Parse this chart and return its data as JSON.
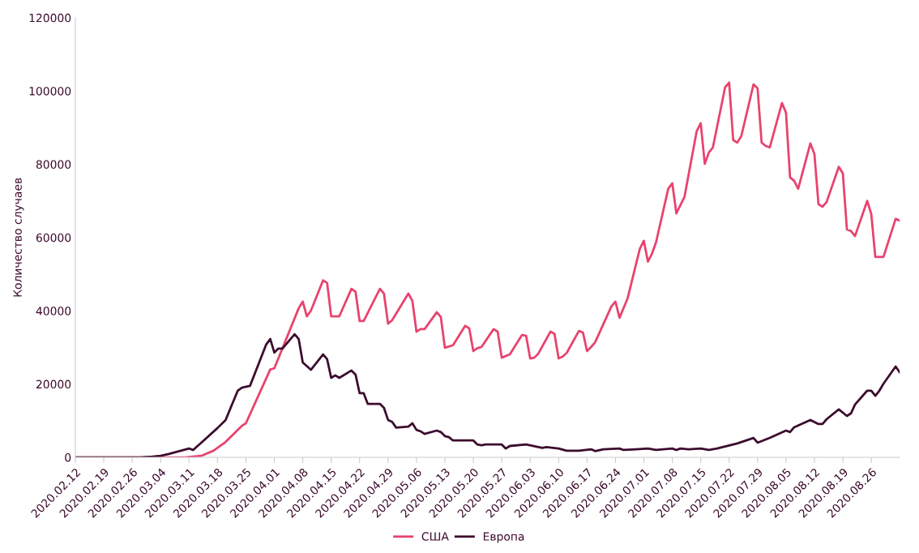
{
  "chart_data": {
    "type": "line",
    "ylabel": "Количество случаев",
    "ylim": [
      0,
      120000
    ],
    "yticks": [
      0,
      20000,
      40000,
      60000,
      80000,
      100000,
      120000
    ],
    "xlim": [
      "2020-02-12",
      "2020-09-02"
    ],
    "xticks": [
      {
        "value": "2020-02-12",
        "label": "2020.02.12"
      },
      {
        "value": "2020-02-19",
        "label": "2020.02.19"
      },
      {
        "value": "2020-02-26",
        "label": "2020.02.26"
      },
      {
        "value": "2020-03-04",
        "label": "2020.03.04"
      },
      {
        "value": "2020-03-11",
        "label": "2020.03.11"
      },
      {
        "value": "2020-03-18",
        "label": "2020.03.18"
      },
      {
        "value": "2020-03-25",
        "label": "2020.03.25"
      },
      {
        "value": "2020-04-01",
        "label": "2020.04.01"
      },
      {
        "value": "2020-04-08",
        "label": "2020.04.08"
      },
      {
        "value": "2020-04-15",
        "label": "2020.04.15"
      },
      {
        "value": "2020-04-22",
        "label": "2020.04.22"
      },
      {
        "value": "2020-04-29",
        "label": "2020.04.29"
      },
      {
        "value": "2020-05-06",
        "label": "2020.05.06"
      },
      {
        "value": "2020-05-13",
        "label": "2020.05.13"
      },
      {
        "value": "2020-05-20",
        "label": "2020.05.20"
      },
      {
        "value": "2020-05-27",
        "label": "2020.05.27"
      },
      {
        "value": "2020-06-03",
        "label": "2020.06.03"
      },
      {
        "value": "2020-06-10",
        "label": "2020.06.10"
      },
      {
        "value": "2020-06-17",
        "label": "2020.06.17"
      },
      {
        "value": "2020-06-24",
        "label": "2020.06.24"
      },
      {
        "value": "2020-07-01",
        "label": "2020.07.01"
      },
      {
        "value": "2020-07-08",
        "label": "2020.07.08"
      },
      {
        "value": "2020-07-15",
        "label": "2020.07.15"
      },
      {
        "value": "2020-07-22",
        "label": "2020.07.22"
      },
      {
        "value": "2020-07-29",
        "label": "2020.07.29"
      },
      {
        "value": "2020-08-05",
        "label": "2020.08.05"
      },
      {
        "value": "2020-08-12",
        "label": "2020.08.12"
      },
      {
        "value": "2020-08-19",
        "label": "2020.08.19"
      },
      {
        "value": "2020-08-26",
        "label": "2020.08.26"
      }
    ],
    "grid": false,
    "legend": "bottom",
    "marker": "none",
    "line_style": "solid",
    "series": [
      {
        "name": "США",
        "color": "#e8436e",
        "x": [
          "2020-02-12",
          "2020-03-10",
          "2020-03-14",
          "2020-03-17",
          "2020-03-20",
          "2020-03-24",
          "2020-03-25",
          "2020-03-31",
          "2020-04-01",
          "2020-04-07",
          "2020-04-08",
          "2020-04-09",
          "2020-04-10",
          "2020-04-13",
          "2020-04-14",
          "2020-04-15",
          "2020-04-17",
          "2020-04-20",
          "2020-04-21",
          "2020-04-22",
          "2020-04-23",
          "2020-04-27",
          "2020-04-28",
          "2020-04-29",
          "2020-04-30",
          "2020-05-04",
          "2020-05-05",
          "2020-05-06",
          "2020-05-07",
          "2020-05-08",
          "2020-05-11",
          "2020-05-12",
          "2020-05-13",
          "2020-05-15",
          "2020-05-18",
          "2020-05-19",
          "2020-05-20",
          "2020-05-21",
          "2020-05-22",
          "2020-05-25",
          "2020-05-26",
          "2020-05-27",
          "2020-05-29",
          "2020-06-01",
          "2020-06-02",
          "2020-06-03",
          "2020-06-04",
          "2020-06-05",
          "2020-06-08",
          "2020-06-09",
          "2020-06-10",
          "2020-06-11",
          "2020-06-12",
          "2020-06-15",
          "2020-06-16",
          "2020-06-17",
          "2020-06-18",
          "2020-06-19",
          "2020-06-23",
          "2020-06-24",
          "2020-06-25",
          "2020-06-27",
          "2020-06-30",
          "2020-07-01",
          "2020-07-02",
          "2020-07-03",
          "2020-07-04",
          "2020-07-07",
          "2020-07-08",
          "2020-07-09",
          "2020-07-11",
          "2020-07-14",
          "2020-07-15",
          "2020-07-16",
          "2020-07-17",
          "2020-07-18",
          "2020-07-21",
          "2020-07-22",
          "2020-07-23",
          "2020-07-24",
          "2020-07-25",
          "2020-07-28",
          "2020-07-29",
          "2020-07-30",
          "2020-07-31",
          "2020-08-01",
          "2020-08-04",
          "2020-08-05",
          "2020-08-06",
          "2020-08-07",
          "2020-08-08",
          "2020-08-11",
          "2020-08-12",
          "2020-08-13",
          "2020-08-14",
          "2020-08-15",
          "2020-08-18",
          "2020-08-19",
          "2020-08-20",
          "2020-08-21",
          "2020-08-22",
          "2020-08-25",
          "2020-08-26",
          "2020-08-27",
          "2020-08-29",
          "2020-09-01",
          "2020-09-02"
        ],
        "values": [
          0,
          0,
          400,
          1800,
          4200,
          8600,
          9300,
          24000,
          24300,
          40700,
          42500,
          38500,
          40000,
          48300,
          47600,
          38500,
          38500,
          46000,
          45200,
          37200,
          37200,
          46000,
          44700,
          36500,
          37400,
          44700,
          42700,
          34300,
          35000,
          35000,
          39600,
          38300,
          29900,
          30600,
          35900,
          35200,
          29000,
          29800,
          30100,
          35000,
          34300,
          27200,
          28100,
          33400,
          33200,
          27000,
          27200,
          28300,
          34300,
          33700,
          27000,
          27500,
          28500,
          34500,
          34100,
          29000,
          30100,
          31400,
          41200,
          42500,
          38100,
          43400,
          56900,
          59100,
          53400,
          55600,
          58700,
          73300,
          74800,
          66600,
          71100,
          89000,
          91200,
          80100,
          83200,
          84600,
          101000,
          102300,
          86600,
          85900,
          87700,
          101800,
          100700,
          85900,
          85000,
          84600,
          96700,
          94100,
          76400,
          75500,
          73300,
          85700,
          82800,
          69100,
          68400,
          69700,
          79300,
          77500,
          62200,
          61800,
          60400,
          70000,
          66400,
          54700,
          54700,
          65100,
          64600
        ]
      },
      {
        "name": "Европа",
        "color": "#3d0c2e",
        "x": [
          "2020-02-12",
          "2020-02-28",
          "2020-03-02",
          "2020-03-04",
          "2020-03-06",
          "2020-03-11",
          "2020-03-12",
          "2020-03-14",
          "2020-03-18",
          "2020-03-20",
          "2020-03-23",
          "2020-03-24",
          "2020-03-26",
          "2020-03-30",
          "2020-03-31",
          "2020-04-01",
          "2020-04-02",
          "2020-04-03",
          "2020-04-06",
          "2020-04-07",
          "2020-04-08",
          "2020-04-10",
          "2020-04-13",
          "2020-04-14",
          "2020-04-15",
          "2020-04-16",
          "2020-04-17",
          "2020-04-20",
          "2020-04-21",
          "2020-04-22",
          "2020-04-23",
          "2020-04-24",
          "2020-04-27",
          "2020-04-28",
          "2020-04-29",
          "2020-04-30",
          "2020-05-01",
          "2020-05-04",
          "2020-05-05",
          "2020-05-06",
          "2020-05-07",
          "2020-05-08",
          "2020-05-11",
          "2020-05-12",
          "2020-05-13",
          "2020-05-14",
          "2020-05-15",
          "2020-05-20",
          "2020-05-21",
          "2020-05-22",
          "2020-05-23",
          "2020-05-27",
          "2020-05-28",
          "2020-05-29",
          "2020-06-02",
          "2020-06-06",
          "2020-06-07",
          "2020-06-10",
          "2020-06-12",
          "2020-06-15",
          "2020-06-18",
          "2020-06-19",
          "2020-06-21",
          "2020-06-25",
          "2020-06-26",
          "2020-06-29",
          "2020-07-02",
          "2020-07-04",
          "2020-07-08",
          "2020-07-09",
          "2020-07-10",
          "2020-07-12",
          "2020-07-15",
          "2020-07-17",
          "2020-07-19",
          "2020-07-24",
          "2020-07-28",
          "2020-07-29",
          "2020-08-01",
          "2020-08-05",
          "2020-08-06",
          "2020-08-07",
          "2020-08-11",
          "2020-08-13",
          "2020-08-14",
          "2020-08-15",
          "2020-08-18",
          "2020-08-20",
          "2020-08-21",
          "2020-08-22",
          "2020-08-25",
          "2020-08-26",
          "2020-08-27",
          "2020-08-28",
          "2020-08-29",
          "2020-09-01",
          "2020-09-02"
        ],
        "values": [
          0,
          0,
          200,
          400,
          900,
          2400,
          2000,
          4000,
          8000,
          10200,
          18200,
          19000,
          19500,
          30800,
          32300,
          28600,
          29700,
          29700,
          33600,
          32300,
          25900,
          23900,
          28100,
          26800,
          21700,
          22400,
          21700,
          23700,
          22600,
          17500,
          17500,
          14600,
          14600,
          13500,
          10200,
          9700,
          8100,
          8400,
          9300,
          7500,
          7100,
          6400,
          7300,
          6900,
          5800,
          5500,
          4600,
          4600,
          3500,
          3300,
          3500,
          3500,
          2400,
          3100,
          3500,
          2600,
          2800,
          2400,
          1800,
          1800,
          2200,
          1700,
          2200,
          2400,
          2000,
          2200,
          2400,
          2000,
          2400,
          2000,
          2400,
          2200,
          2400,
          2000,
          2400,
          3800,
          5300,
          4000,
          5300,
          7300,
          6900,
          8200,
          10200,
          9100,
          9100,
          10400,
          13100,
          11300,
          12000,
          14400,
          18200,
          18200,
          16800,
          18200,
          20100,
          24800,
          23200
        ]
      }
    ]
  }
}
